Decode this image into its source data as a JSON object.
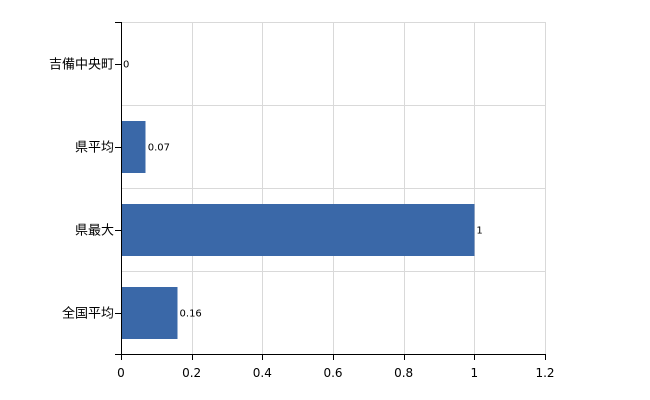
{
  "chart_data": {
    "type": "bar",
    "orientation": "horizontal",
    "categories": [
      "吉備中央町",
      "県平均",
      "県最大",
      "全国平均"
    ],
    "values": [
      0,
      0.07,
      1,
      0.16
    ],
    "data_labels": [
      "0",
      "0.07",
      "1",
      "0.16"
    ],
    "x_ticks": [
      "0",
      "0.2",
      "0.4",
      "0.6",
      "0.8",
      "1",
      "1.2"
    ],
    "xlim": [
      0,
      1.2
    ],
    "grid": true,
    "bar_color": "#3a68a8"
  }
}
